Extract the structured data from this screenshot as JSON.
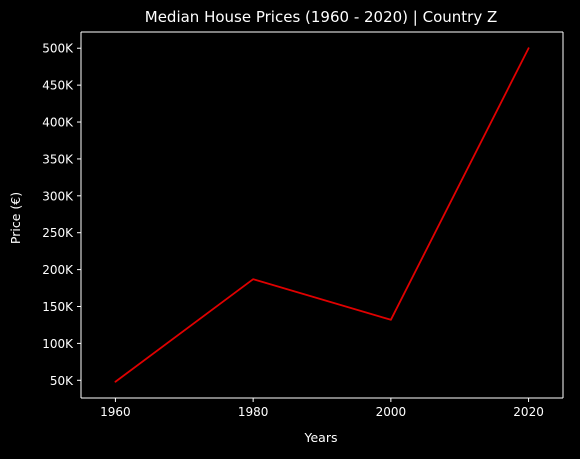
{
  "chart_data": {
    "type": "line",
    "title": "Median House Prices (1960 - 2020) | Country Z",
    "xlabel": "Years",
    "ylabel": "Price (€)",
    "x": [
      1960,
      1980,
      2000,
      2020
    ],
    "series": [
      {
        "values": [
          48000,
          187000,
          132000,
          500000
        ],
        "color": "#e00000"
      }
    ],
    "xticks": [
      1960,
      1980,
      2000,
      2020
    ],
    "xtick_labels": [
      "1960",
      "1980",
      "2000",
      "2020"
    ],
    "yticks": [
      50000,
      100000,
      150000,
      200000,
      250000,
      300000,
      350000,
      400000,
      450000,
      500000
    ],
    "ytick_labels": [
      "50K",
      "100K",
      "150K",
      "200K",
      "250K",
      "300K",
      "350K",
      "400K",
      "450K",
      "500K"
    ],
    "xlim": [
      1955,
      2025
    ],
    "ylim": [
      26000,
      522000
    ],
    "grid": false,
    "background_color": "#000000",
    "axis_color": "#ffffff",
    "text_color": "#ffffff"
  }
}
